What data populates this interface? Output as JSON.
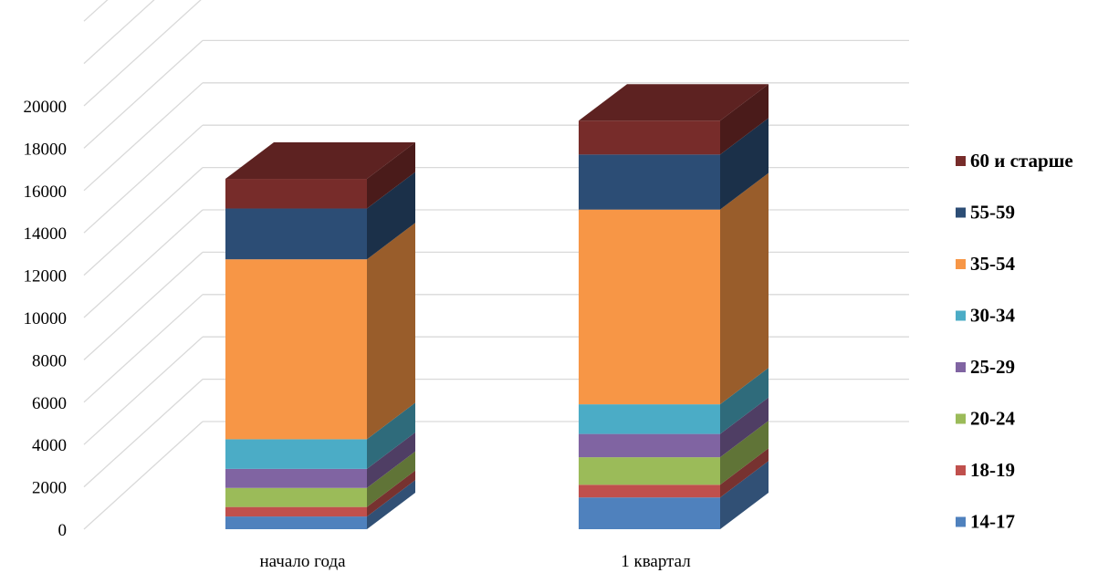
{
  "chart_data": {
    "type": "bar",
    "stacked": true,
    "three_d": true,
    "title": "",
    "xlabel": "",
    "ylabel": "",
    "ylim": [
      0,
      20000
    ],
    "ytick_step": 2000,
    "gridlines": true,
    "legend_position": "right",
    "categories": [
      "начало года",
      "1 квартал"
    ],
    "series": [
      {
        "name": "14-17",
        "color": "#4F81BD",
        "values": [
          600,
          1500
        ]
      },
      {
        "name": "18-19",
        "color": "#C0504D",
        "values": [
          450,
          600
        ]
      },
      {
        "name": "20-24",
        "color": "#9BBB59",
        "values": [
          900,
          1300
        ]
      },
      {
        "name": "25-29",
        "color": "#8064A2",
        "values": [
          900,
          1100
        ]
      },
      {
        "name": "30-34",
        "color": "#4BACC6",
        "values": [
          1400,
          1400
        ]
      },
      {
        "name": "35-54",
        "color": "#F79646",
        "values": [
          8500,
          9200
        ]
      },
      {
        "name": "55-59",
        "color": "#2C4D75",
        "values": [
          2400,
          2600
        ]
      },
      {
        "name": "60 и старше",
        "color": "#772C2A",
        "values": [
          1400,
          1600
        ]
      }
    ]
  }
}
